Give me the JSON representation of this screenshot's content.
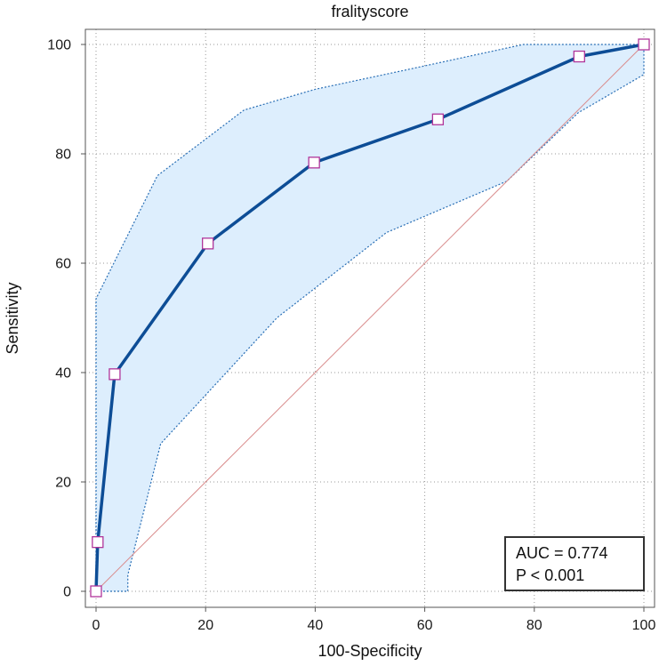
{
  "chart_data": {
    "type": "line",
    "title": "fralityscore",
    "xlabel": "100-Specificity",
    "ylabel": "Sensitivity",
    "xlim": [
      0,
      100
    ],
    "ylim": [
      0,
      100
    ],
    "xticks": [
      "0",
      "20",
      "40",
      "60",
      "80",
      "100"
    ],
    "yticks": [
      "0",
      "20",
      "40",
      "60",
      "80",
      "100"
    ],
    "grid": true,
    "series": [
      {
        "role": "roc-curve",
        "color": "#0d4d96",
        "marker_fill": "#ffffff",
        "marker_stroke": "#b0359a",
        "points": [
          [
            0,
            0
          ],
          [
            0.3,
            9
          ],
          [
            3.4,
            39.7
          ],
          [
            20.4,
            63.6
          ],
          [
            39.8,
            78.4
          ],
          [
            62.4,
            86.3
          ],
          [
            88.2,
            97.8
          ],
          [
            100,
            100
          ]
        ]
      },
      {
        "role": "confidence-band",
        "fill": "#ddeefd",
        "stroke": "#2a6fb5",
        "upper": [
          [
            0,
            0
          ],
          [
            0,
            53.5
          ],
          [
            11.2,
            76
          ],
          [
            27,
            88
          ],
          [
            40,
            91.8
          ],
          [
            55,
            95
          ],
          [
            78,
            100
          ],
          [
            100,
            100
          ]
        ],
        "lower": [
          [
            0,
            0
          ],
          [
            5.8,
            0
          ],
          [
            5.8,
            3
          ],
          [
            11.8,
            27
          ],
          [
            33,
            50
          ],
          [
            53,
            65.6
          ],
          [
            75,
            75
          ],
          [
            88,
            87.5
          ],
          [
            100,
            94.5
          ],
          [
            100,
            100
          ]
        ]
      },
      {
        "role": "reference-diagonal",
        "color": "#d98c8c",
        "points": [
          [
            0,
            0
          ],
          [
            100,
            100
          ]
        ]
      }
    ],
    "annotations": {
      "auc": "AUC = 0.774",
      "p": "P < 0.001"
    }
  }
}
